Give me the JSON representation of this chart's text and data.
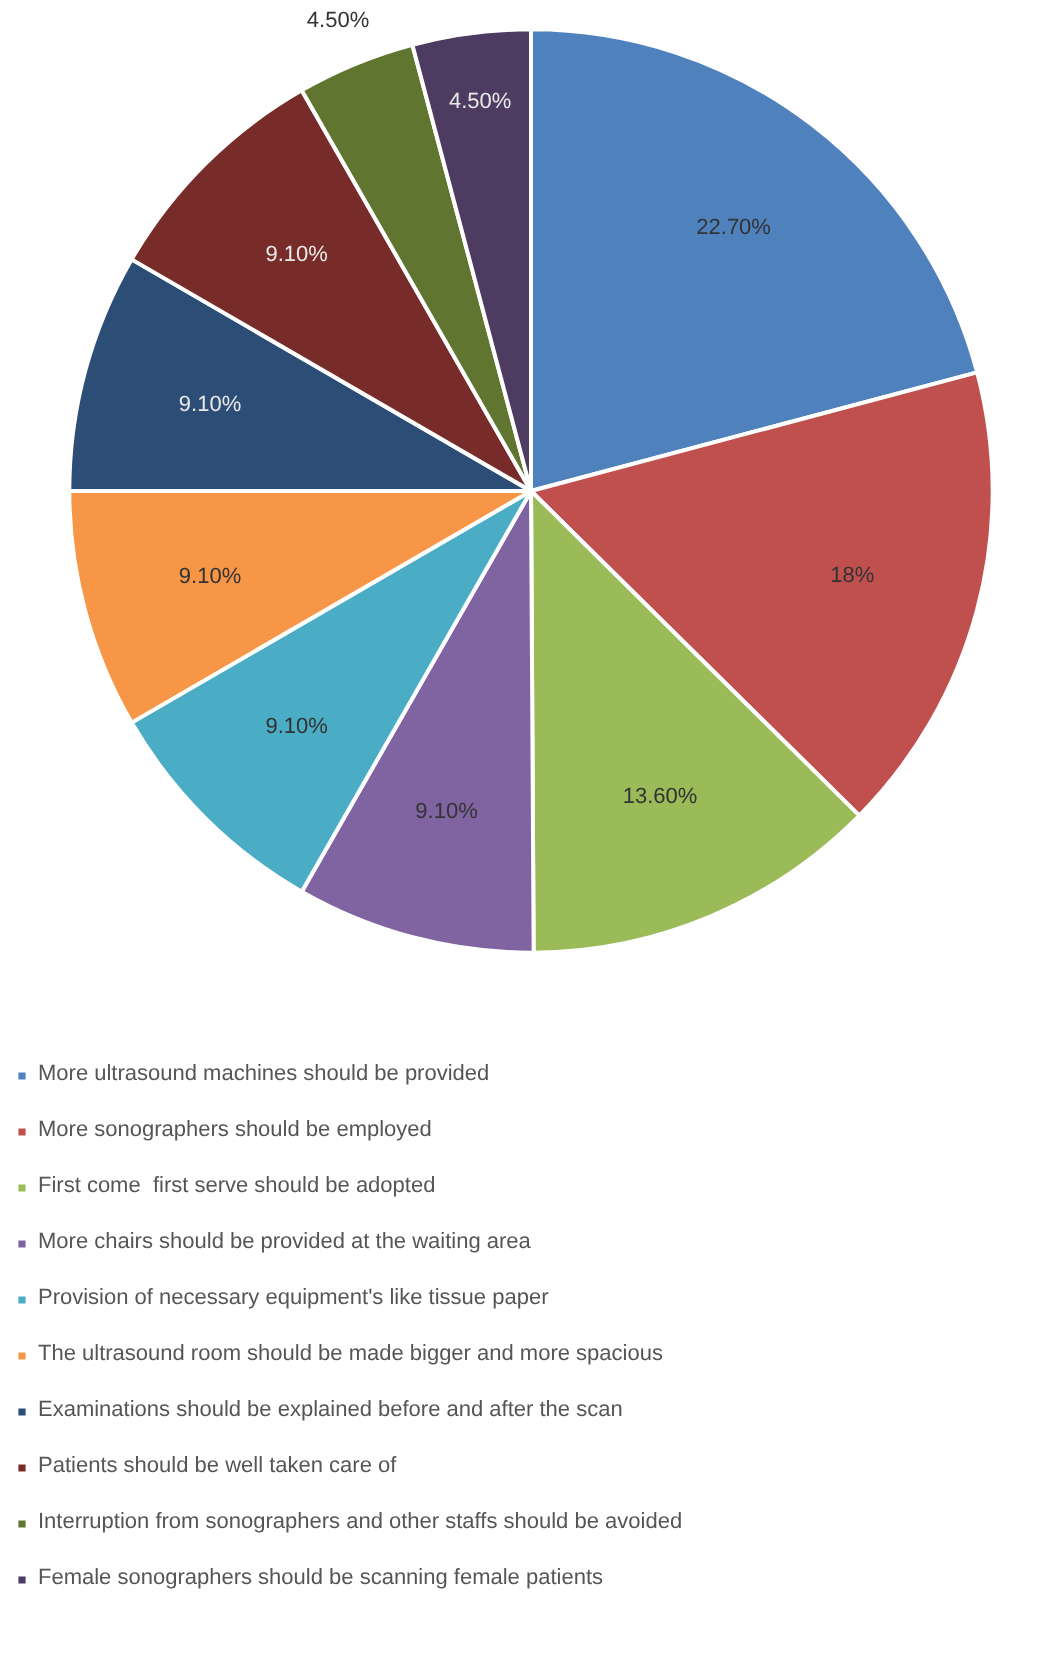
{
  "chart_data": {
    "type": "pie",
    "categories": [
      "More ultrasound machines should be provided",
      "More sonographers should be employed",
      "First come  first serve should be adopted",
      "More chairs should be provided at the waiting area",
      "Provision of necessary equipment's like tissue paper",
      "The ultrasound room should be made bigger and more spacious",
      "Examinations should be explained before and after the scan",
      "Patients should be well taken care of",
      "Interruption from sonographers and other staffs should be avoided",
      "Female sonographers should be scanning female patients"
    ],
    "values": [
      22.7,
      18,
      13.6,
      9.1,
      9.1,
      9.1,
      9.1,
      9.1,
      4.5,
      4.5
    ],
    "value_labels": [
      "22.70%",
      "18%",
      "13.60%",
      "9.10%",
      "9.10%",
      "9.10%",
      "9.10%",
      "9.10%",
      "4.50%",
      "4.50%"
    ],
    "colors": [
      "#4f81bd",
      "#c0504d",
      "#9bbb59",
      "#8064a2",
      "#4bacc6",
      "#f79646",
      "#2c4d75",
      "#772c2a",
      "#5f7530",
      "#4d3b62"
    ],
    "legend": "bottom"
  }
}
